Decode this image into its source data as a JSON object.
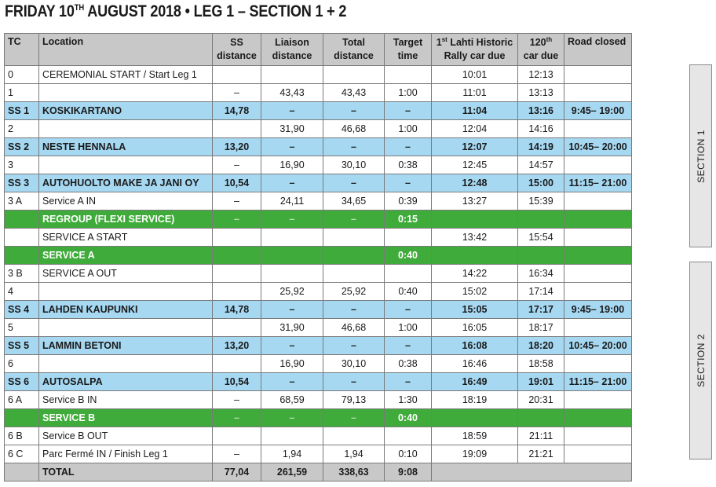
{
  "header": {
    "title_prefix": "FRIDAY 10",
    "title_sup": "TH",
    "title_suffix": " AUGUST 2018  •  LEG 1 – SECTION 1 + 2"
  },
  "columns": {
    "tc": "TC",
    "location": "Location",
    "ss_line1": "SS",
    "ss_line2": "distance",
    "liaison_line1": "Liaison",
    "liaison_line2": "distance",
    "total_line1": "Total",
    "total_line2": "distance",
    "target_line1": "Target",
    "target_line2": "time",
    "lahti_num": "1",
    "lahti_sup": "st",
    "lahti_line1": " Lahti Historic",
    "lahti_line2": "Rally car due",
    "car120_num": "120",
    "car120_sup": "th",
    "car120_line2": "car due",
    "road": "Road closed"
  },
  "rows": [
    {
      "type": "normal",
      "tc": "0",
      "location": "CEREMONIAL START / Start Leg 1",
      "ss": "",
      "liaison": "",
      "total": "",
      "target": "",
      "first_due": "10:01",
      "car120_due": "12:13",
      "road": ""
    },
    {
      "type": "normal",
      "tc": "1",
      "location": "",
      "ss": "–",
      "liaison": "43,43",
      "total": "43,43",
      "target": "1:00",
      "first_due": "11:01",
      "car120_due": "13:13",
      "road": ""
    },
    {
      "type": "ss",
      "tc": "SS 1",
      "location": "KOSKIKARTANO",
      "ss": "14,78",
      "liaison": "–",
      "total": "–",
      "target": "–",
      "first_due": "11:04",
      "car120_due": "13:16",
      "road": "9:45– 19:00"
    },
    {
      "type": "normal",
      "tc": "2",
      "location": "",
      "ss": "",
      "liaison": "31,90",
      "total": "46,68",
      "target": "1:00",
      "first_due": "12:04",
      "car120_due": "14:16",
      "road": ""
    },
    {
      "type": "ss",
      "tc": "SS 2",
      "location": "NESTE HENNALA",
      "ss": "13,20",
      "liaison": "–",
      "total": "–",
      "target": "–",
      "first_due": "12:07",
      "car120_due": "14:19",
      "road": "10:45– 20:00"
    },
    {
      "type": "normal",
      "tc": "3",
      "location": "",
      "ss": "–",
      "liaison": "16,90",
      "total": "30,10",
      "target": "0:38",
      "first_due": "12:45",
      "car120_due": "14:57",
      "road": ""
    },
    {
      "type": "ss",
      "tc": "SS 3",
      "location": "AUTOHUOLTO MAKE JA JANI OY",
      "ss": "10,54",
      "liaison": "–",
      "total": "–",
      "target": "–",
      "first_due": "12:48",
      "car120_due": "15:00",
      "road": "11:15– 21:00"
    },
    {
      "type": "normal",
      "tc": "3 A",
      "location": "Service A IN",
      "ss": "–",
      "liaison": "24,11",
      "total": "34,65",
      "target": "0:39",
      "first_due": "13:27",
      "car120_due": "15:39",
      "road": ""
    },
    {
      "type": "regroup",
      "tc": "",
      "location": "REGROUP (FLEXI SERVICE)",
      "ss": "–",
      "liaison": "–",
      "total": "–",
      "target": "0:15",
      "first_due": "",
      "car120_due": "",
      "road": ""
    },
    {
      "type": "normal",
      "tc": "",
      "location": "SERVICE A START",
      "ss": "",
      "liaison": "",
      "total": "",
      "target": "",
      "first_due": "13:42",
      "car120_due": "15:54",
      "road": ""
    },
    {
      "type": "regroup",
      "tc": "",
      "location": "SERVICE A",
      "ss": "",
      "liaison": "",
      "total": "",
      "target": "0:40",
      "first_due": "",
      "car120_due": "",
      "road": ""
    },
    {
      "type": "normal",
      "tc": "3 B",
      "location": "SERVICE A OUT",
      "ss": "",
      "liaison": "",
      "total": "",
      "target": "",
      "first_due": "14:22",
      "car120_due": "16:34",
      "road": ""
    },
    {
      "type": "normal",
      "tc": "4",
      "location": "",
      "ss": "",
      "liaison": "25,92",
      "total": "25,92",
      "target": "0:40",
      "first_due": "15:02",
      "car120_due": "17:14",
      "road": ""
    },
    {
      "type": "ss",
      "tc": "SS 4",
      "location": "LAHDEN KAUPUNKI",
      "ss": "14,78",
      "liaison": "–",
      "total": "–",
      "target": "–",
      "first_due": "15:05",
      "car120_due": "17:17",
      "road": "9:45– 19:00"
    },
    {
      "type": "normal",
      "tc": "5",
      "location": "",
      "ss": "",
      "liaison": "31,90",
      "total": "46,68",
      "target": "1:00",
      "first_due": "16:05",
      "car120_due": "18:17",
      "road": ""
    },
    {
      "type": "ss",
      "tc": "SS 5",
      "location": "LAMMIN BETONI",
      "ss": "13,20",
      "liaison": "–",
      "total": "–",
      "target": "–",
      "first_due": "16:08",
      "car120_due": "18:20",
      "road": "10:45– 20:00"
    },
    {
      "type": "normal",
      "tc": "6",
      "location": "",
      "ss": "",
      "liaison": "16,90",
      "total": "30,10",
      "target": "0:38",
      "first_due": "16:46",
      "car120_due": "18:58",
      "road": ""
    },
    {
      "type": "ss",
      "tc": "SS 6",
      "location": "AUTOSALPA",
      "ss": "10,54",
      "liaison": "–",
      "total": "–",
      "target": "–",
      "first_due": "16:49",
      "car120_due": "19:01",
      "road": "11:15– 21:00"
    },
    {
      "type": "normal",
      "tc": "6 A",
      "location": "Service B IN",
      "ss": "–",
      "liaison": "68,59",
      "total": "79,13",
      "target": "1:30",
      "first_due": "18:19",
      "car120_due": "20:31",
      "road": ""
    },
    {
      "type": "regroup",
      "tc": "",
      "location": "SERVICE B",
      "ss": "–",
      "liaison": "–",
      "total": "–",
      "target": "0:40",
      "first_due": "",
      "car120_due": "",
      "road": ""
    },
    {
      "type": "normal",
      "tc": "6 B",
      "location": "Service B OUT",
      "ss": "",
      "liaison": "",
      "total": "",
      "target": "",
      "first_due": "18:59",
      "car120_due": "21:11",
      "road": ""
    },
    {
      "type": "normal",
      "tc": "6 C",
      "location": "Parc Fermé IN / Finish Leg 1",
      "ss": "–",
      "liaison": "1,94",
      "total": "1,94",
      "target": "0:10",
      "first_due": "19:09",
      "car120_due": "21:21",
      "road": ""
    }
  ],
  "totals": {
    "tc": "",
    "location": "TOTAL",
    "ss": "77,04",
    "liaison": "261,59",
    "total": "338,63",
    "target": "9:08"
  },
  "sections": [
    {
      "label": "SECTION 1"
    },
    {
      "label": "SECTION 2"
    }
  ]
}
